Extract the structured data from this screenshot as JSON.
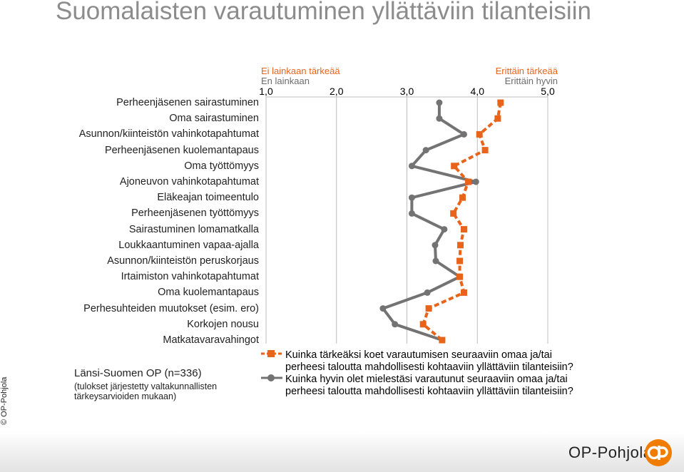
{
  "title": "Suomalaisten varautuminen yllättäviin tilanteisiin",
  "scale_headers": {
    "left_importance": "Ei lainkaan tärkeää",
    "left_readiness": "En lainkaan",
    "right_importance": "Erittäin tärkeää",
    "right_readiness": "Erittäin hyvin"
  },
  "colors": {
    "importance": "#e8641b",
    "readiness": "#737373",
    "gridline": "#bdbdbd"
  },
  "note": {
    "main": "Länsi-Suomen OP (n=336)",
    "sub_line1": "(tulokset järjestetty valtakunnallisten",
    "sub_line2": "tärkeysarvioiden mukaan)"
  },
  "copyright": "© OP-Pohjola",
  "brand": "OP-Pohjola",
  "chart_data": {
    "type": "line",
    "orientation": "horizontal",
    "xlim": [
      1.0,
      5.0
    ],
    "x_ticks": [
      "1,0",
      "2,0",
      "3,0",
      "4,0",
      "5,0"
    ],
    "categories": [
      "Perheenjäsenen sairastuminen",
      "Oma sairastuminen",
      "Asunnon/kiinteistön vahinkotapahtumat",
      "Perheenjäsenen kuolemantapaus",
      "Oma työttömyys",
      "Ajoneuvon vahinkotapahtumat",
      "Eläkeajan toimeentulo",
      "Perheenjäsenen työttömyys",
      "Sairastuminen lomamatkalla",
      "Loukkaantuminen vapaa-ajalla",
      "Asunnon/kiinteistön peruskorjaus",
      "Irtaimiston vahinkotapahtumat",
      "Oma kuolemantapaus",
      "Perhesuhteiden muutokset (esim. ero)",
      "Korkojen nousu",
      "Matkatavaravahingot"
    ],
    "series": [
      {
        "name": "Kuinka tärkeäksi koet varautumisen seuraaviin omaa ja/tai perheesi taloutta mahdollisesti kohtaaviin yllättäviin tilanteisiin?",
        "marker": "square",
        "values": [
          4.33,
          4.29,
          4.03,
          4.11,
          3.67,
          3.87,
          3.79,
          3.66,
          3.81,
          3.76,
          3.75,
          3.75,
          3.81,
          3.31,
          3.23,
          3.5
        ]
      },
      {
        "name": "Kuinka hyvin olet mielestäsi varautunut seuraaviin omaa ja/tai perheesi taloutta mahdollisesti kohtaaviin yllättäviin tilanteisiin?",
        "marker": "circle",
        "values": [
          3.46,
          3.46,
          3.81,
          3.27,
          3.07,
          3.98,
          3.07,
          3.07,
          3.53,
          3.4,
          3.41,
          3.75,
          3.29,
          2.66,
          2.83,
          3.5
        ]
      }
    ],
    "legend": [
      {
        "line1": "Kuinka tärkeäksi koet varautumisen seuraaviin omaa ja/tai",
        "line2": "perheesi taloutta mahdollisesti kohtaaviin yllättäviin tilanteisiin?"
      },
      {
        "line1": "Kuinka hyvin olet mielestäsi varautunut seuraaviin omaa ja/tai",
        "line2": "perheesi taloutta mahdollisesti kohtaaviin yllättäviin tilanteisiin?"
      }
    ]
  }
}
